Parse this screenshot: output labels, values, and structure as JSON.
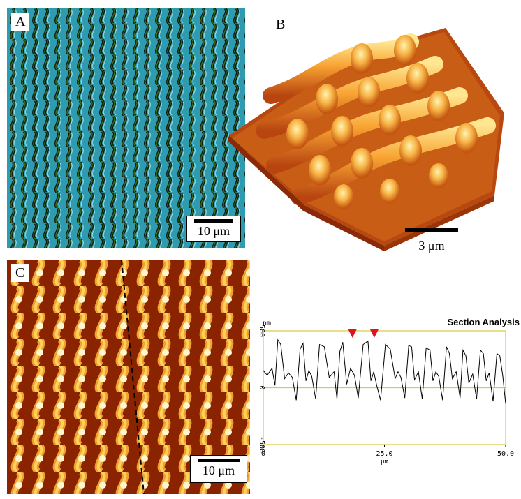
{
  "panel_a": {
    "label": "A",
    "scale_text": "10 μm"
  },
  "panel_b": {
    "label": "B",
    "scale_text": "3 μm"
  },
  "panel_c": {
    "label": "C",
    "scale_text": "10 μm"
  },
  "section_plot": {
    "title": "Section Analysis",
    "unit_label": "nm"
  },
  "colors": {
    "optical_bg": "#2f9bb0",
    "afm_dark": "#8a2400",
    "afm_light": "#ffd25a",
    "guide_line": "#d8cc3a",
    "marker": "#e0141a"
  },
  "chart_data": {
    "type": "line",
    "title": "Section Analysis",
    "xlabel": "μm",
    "ylabel": "nm",
    "xlim": [
      0,
      50
    ],
    "ylim": [
      -500,
      500
    ],
    "x_ticks": [
      "0",
      "25.0",
      "50.0"
    ],
    "y_ticks": [
      "500",
      "0",
      "-500"
    ],
    "series": [
      {
        "x": [
          0,
          0.8,
          1.8,
          2.4,
          3.0,
          3.6,
          4.4,
          5.2,
          6.0,
          6.8,
          7.6,
          8.2,
          8.8,
          9.4,
          10.0,
          10.8,
          11.6,
          12.6,
          13.6,
          14.6,
          15.2,
          15.8,
          16.4,
          17.2,
          18.0,
          18.8,
          19.6,
          20.6,
          21.6,
          22.2,
          22.8,
          23.4,
          24.2,
          25.2,
          26.2,
          27.2,
          27.8,
          28.4,
          29.2,
          30.0,
          30.6,
          31.2,
          32.0,
          32.8,
          33.6,
          34.4,
          35.0,
          35.6,
          36.2,
          37.0,
          37.8,
          38.4,
          39.0,
          39.8,
          40.6,
          41.2,
          41.8,
          42.4,
          43.2,
          44.0,
          44.8,
          45.4,
          46.0,
          46.6,
          47.4,
          48.2,
          48.8,
          49.4,
          50.0
        ],
        "y": [
          150,
          110,
          170,
          20,
          420,
          380,
          80,
          130,
          90,
          -110,
          340,
          390,
          60,
          150,
          100,
          -100,
          380,
          360,
          90,
          140,
          -100,
          320,
          400,
          30,
          170,
          110,
          -90,
          380,
          410,
          60,
          140,
          20,
          -110,
          380,
          340,
          80,
          140,
          90,
          -90,
          370,
          360,
          70,
          140,
          -100,
          350,
          330,
          60,
          140,
          100,
          -110,
          360,
          300,
          80,
          140,
          -90,
          330,
          280,
          40,
          120,
          -100,
          330,
          300,
          60,
          130,
          -120,
          300,
          280,
          110,
          -140
        ]
      }
    ],
    "markers_x": [
      18.4,
      22.9
    ]
  }
}
